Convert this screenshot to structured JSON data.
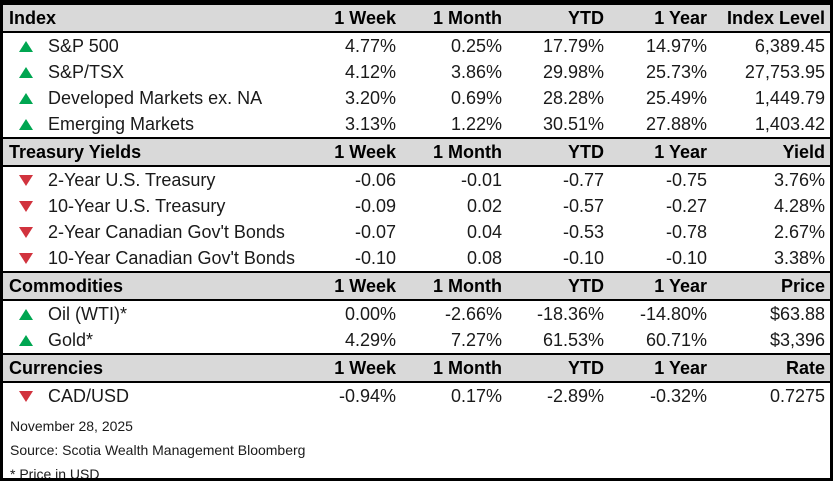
{
  "colors": {
    "up": "#00A651",
    "down": "#D1333E",
    "header_bg": "#D9D9D9",
    "border": "#000000"
  },
  "sections": [
    {
      "title": "Index",
      "columns": [
        "1 Week",
        "1 Month",
        "YTD",
        "1 Year",
        "Index Level"
      ],
      "rows": [
        {
          "direction": "up",
          "label": "S&P 500",
          "week": "4.77%",
          "month": "0.25%",
          "ytd": "17.79%",
          "year": "14.97%",
          "value": "6,389.45"
        },
        {
          "direction": "up",
          "label": "S&P/TSX",
          "week": "4.12%",
          "month": "3.86%",
          "ytd": "29.98%",
          "year": "25.73%",
          "value": "27,753.95"
        },
        {
          "direction": "up",
          "label": "Developed Markets ex. NA",
          "week": "3.20%",
          "month": "0.69%",
          "ytd": "28.28%",
          "year": "25.49%",
          "value": "1,449.79"
        },
        {
          "direction": "up",
          "label": "Emerging Markets",
          "week": "3.13%",
          "month": "1.22%",
          "ytd": "30.51%",
          "year": "27.88%",
          "value": "1,403.42"
        }
      ]
    },
    {
      "title": "Treasury Yields",
      "columns": [
        "1 Week",
        "1 Month",
        "YTD",
        "1 Year",
        "Yield"
      ],
      "rows": [
        {
          "direction": "down",
          "label": "2-Year U.S. Treasury",
          "week": "-0.06",
          "month": "-0.01",
          "ytd": "-0.77",
          "year": "-0.75",
          "value": "3.76%"
        },
        {
          "direction": "down",
          "label": "10-Year U.S. Treasury",
          "week": "-0.09",
          "month": "0.02",
          "ytd": "-0.57",
          "year": "-0.27",
          "value": "4.28%"
        },
        {
          "direction": "down",
          "label": "2-Year Canadian Gov't Bonds",
          "week": "-0.07",
          "month": "0.04",
          "ytd": "-0.53",
          "year": "-0.78",
          "value": "2.67%"
        },
        {
          "direction": "down",
          "label": "10-Year Canadian Gov't Bonds",
          "week": "-0.10",
          "month": "0.08",
          "ytd": "-0.10",
          "year": "-0.10",
          "value": "3.38%"
        }
      ]
    },
    {
      "title": "Commodities",
      "columns": [
        "1 Week",
        "1 Month",
        "YTD",
        "1 Year",
        "Price"
      ],
      "rows": [
        {
          "direction": "up",
          "label": "Oil (WTI)*",
          "week": "0.00%",
          "month": "-2.66%",
          "ytd": "-18.36%",
          "year": "-14.80%",
          "value": "$63.88"
        },
        {
          "direction": "up",
          "label": "Gold*",
          "week": "4.29%",
          "month": "7.27%",
          "ytd": "61.53%",
          "year": "60.71%",
          "value": "$3,396"
        }
      ]
    },
    {
      "title": "Currencies",
      "columns": [
        "1 Week",
        "1 Month",
        "YTD",
        "1 Year",
        "Rate"
      ],
      "rows": [
        {
          "direction": "down",
          "label": "CAD/USD",
          "week": "-0.94%",
          "month": "0.17%",
          "ytd": "-2.89%",
          "year": "-0.32%",
          "value": "0.7275"
        }
      ]
    }
  ],
  "footer": {
    "date": "November 28, 2025",
    "source": "Source: Scotia Wealth Management Bloomberg",
    "note": "* Price in USD"
  }
}
